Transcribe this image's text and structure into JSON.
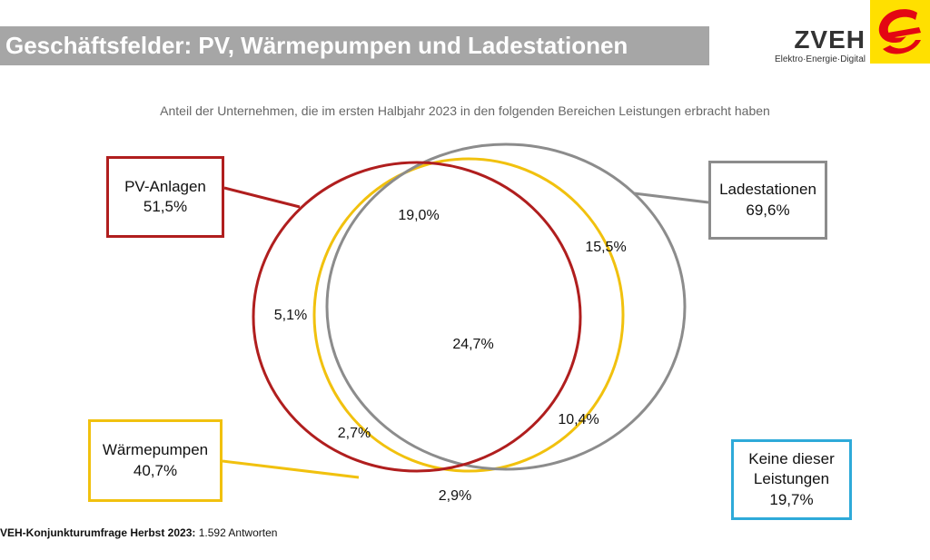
{
  "header": {
    "title": "Geschäftsfelder: PV, Wärmepumpen und Ladestationen",
    "logo_name": "ZVEH",
    "logo_tagline": "Elektro·Energie·Digital"
  },
  "subtitle": "Anteil der Unternehmen, die im ersten Halbjahr 2023 in den folgenden Bereichen Leistungen erbracht haben",
  "sets": {
    "pv": {
      "label": "PV-Anlagen",
      "value": "51,5%",
      "color": "#b01e1e"
    },
    "ladestationen": {
      "label": "Ladestationen",
      "value": "69,6%",
      "color": "#8c8c8c"
    },
    "waermepumpen": {
      "label": "Wärmepumpen",
      "value": "40,7%",
      "color": "#f1c10e"
    },
    "keine": {
      "label_line1": "Keine dieser",
      "label_line2": "Leistungen",
      "value": "19,7%",
      "color": "#2eaad9"
    }
  },
  "regions": {
    "pv_lade": "19,0%",
    "lade_only": "15,5%",
    "pv_only": "5,1%",
    "all_three": "24,7%",
    "lade_waerme": "10,4%",
    "pv_waerme": "2,7%",
    "waerme_only": "2,9%"
  },
  "footer": {
    "source_bold": "VEH-Konjunkturumfrage Herbst 2023:",
    "source_rest": " 1.592 Antworten"
  }
}
